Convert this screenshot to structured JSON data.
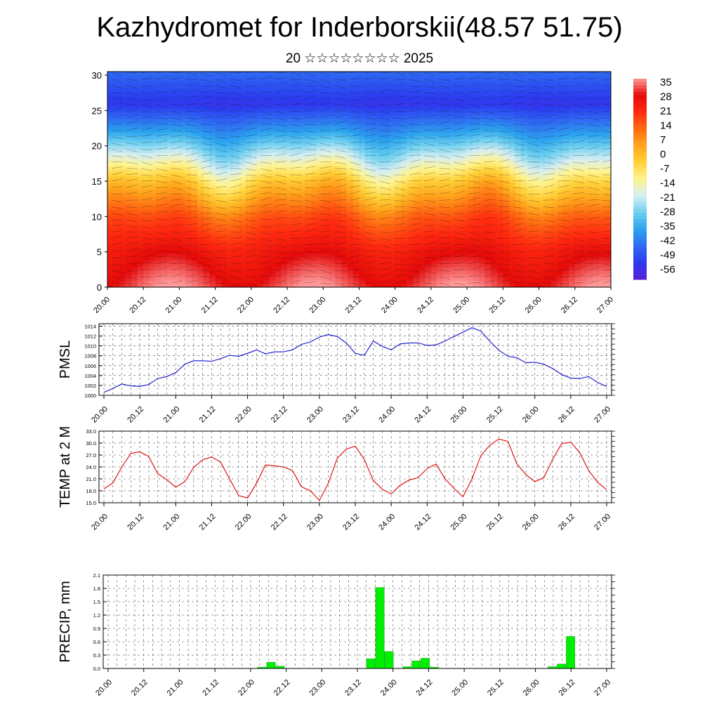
{
  "header": {
    "title": "Kazhydromet for Inderborskii(48.57 51.75)",
    "subtitle": "20 ☆☆☆☆☆☆☆☆ 2025"
  },
  "chart_data": [
    {
      "type": "heatmap",
      "title": "Kazhydromet for Inderborskii(48.57 51.75)",
      "subtitle": "20 ☆☆☆☆☆☆☆☆ 2025",
      "x_ticks": [
        "20.00",
        "20.12",
        "21.00",
        "21.12",
        "22.00",
        "22.12",
        "23.00",
        "23.12",
        "24.00",
        "24.12",
        "25.00",
        "25.12",
        "26.00",
        "26.12",
        "27.00"
      ],
      "y_ticks": [
        0,
        5,
        10,
        15,
        20,
        25,
        30
      ],
      "ylim": [
        0,
        30.5
      ],
      "colorbar_levels": [
        35,
        28,
        21,
        14,
        7,
        0,
        -7,
        -14,
        -21,
        -28,
        -35,
        -42,
        -49,
        -56
      ],
      "colorbar_range": [
        -63,
        42
      ],
      "colorbar_colors": [
        "#5a1fd6",
        "#2b3cf0",
        "#2f6cf2",
        "#2ba3ee",
        "#6fd0f0",
        "#d6eef2",
        "#fff490",
        "#ffd23a",
        "#ffa51c",
        "#ff6a12",
        "#ff2a10",
        "#e40a0a",
        "#ff9a9a"
      ],
      "temperature_profile": {
        "levels": [
          0,
          5,
          10,
          15,
          18,
          22,
          26,
          30.5
        ],
        "values": [
          38,
          30,
          18,
          -2,
          -18,
          -38,
          -56,
          -46
        ]
      },
      "grid": false
    },
    {
      "type": "line",
      "ylabel": "PMSL",
      "x_ticks": [
        "20.00",
        "20.12",
        "21.00",
        "21.12",
        "22.00",
        "22.12",
        "23.00",
        "23.12",
        "24.00",
        "24.12",
        "25.00",
        "25.12",
        "26.00",
        "26.12",
        "27.00"
      ],
      "y_ticks": [
        1000,
        1002,
        1004,
        1006,
        1008,
        1010,
        1012,
        1014
      ],
      "ylim": [
        1000,
        1014.5
      ],
      "grid": true,
      "color": "#1010d0",
      "values": [
        1000.6,
        1001.4,
        1002.3,
        1001.9,
        1001.8,
        1002.2,
        1003.4,
        1003.8,
        1004.6,
        1006.3,
        1007.0,
        1007.0,
        1006.9,
        1007.4,
        1008.1,
        1007.9,
        1008.5,
        1009.2,
        1008.4,
        1008.8,
        1008.8,
        1009.2,
        1010.3,
        1010.8,
        1011.8,
        1012.3,
        1011.9,
        1010.6,
        1008.5,
        1008.1,
        1011.0,
        1009.9,
        1009.2,
        1010.4,
        1010.6,
        1010.6,
        1010.1,
        1010.2,
        1011.0,
        1011.9,
        1012.8,
        1013.7,
        1013.0,
        1010.9,
        1009.1,
        1007.9,
        1007.6,
        1006.6,
        1006.7,
        1006.3,
        1005.4,
        1004.2,
        1003.5,
        1003.4,
        1003.8,
        1002.6,
        1001.8
      ]
    },
    {
      "type": "line",
      "ylabel": "TEMP at 2 M",
      "x_ticks": [
        "20.00",
        "20.12",
        "21.00",
        "21.12",
        "22.00",
        "22.12",
        "23.00",
        "23.12",
        "24.00",
        "24.12",
        "25.00",
        "25.12",
        "26.00",
        "26.12",
        "27.00"
      ],
      "y_ticks": [
        "15.0",
        "18.0",
        "21.0",
        "24.0",
        "27.0",
        "30.0",
        "33.0"
      ],
      "ylim": [
        15,
        33
      ],
      "grid": true,
      "color": "#e00000",
      "values": [
        18.5,
        20.0,
        24.0,
        27.4,
        27.8,
        26.6,
        22.3,
        20.8,
        18.9,
        20.3,
        23.9,
        25.8,
        26.5,
        25.2,
        21.0,
        16.8,
        16.2,
        19.9,
        24.5,
        24.3,
        24.0,
        23.1,
        19.0,
        18.0,
        15.6,
        19.9,
        26.2,
        28.5,
        29.2,
        25.9,
        20.6,
        18.4,
        17.2,
        19.4,
        20.7,
        21.3,
        23.6,
        24.7,
        21.0,
        18.6,
        16.5,
        21.0,
        26.9,
        29.5,
        31.0,
        30.4,
        24.8,
        22.1,
        20.3,
        21.3,
        26.0,
        29.9,
        30.2,
        27.6,
        23.1,
        20.1,
        18.3
      ]
    },
    {
      "type": "bar",
      "ylabel": "PRECIP, mm",
      "x_ticks": [
        "20.00",
        "20.12",
        "21.00",
        "21.12",
        "22.00",
        "22.12",
        "23.00",
        "23.12",
        "24.00",
        "24.12",
        "25.00",
        "25.12",
        "26.00",
        "26.12",
        "27.00"
      ],
      "y_ticks": [
        "0.0",
        "0.3",
        "0.6",
        "0.9",
        "1.2",
        "1.5",
        "1.8",
        "2.1"
      ],
      "ylim": [
        0,
        2.1
      ],
      "grid": true,
      "color": "#00ee00",
      "values": [
        0,
        0,
        0,
        0,
        0,
        0,
        0,
        0,
        0,
        0,
        0,
        0,
        0,
        0,
        0,
        0,
        0,
        0.03,
        0.14,
        0.05,
        0,
        0,
        0,
        0,
        0,
        0,
        0,
        0,
        0,
        0.22,
        1.82,
        0.38,
        0,
        0.04,
        0.17,
        0.23,
        0.03,
        0,
        0,
        0,
        0,
        0,
        0,
        0,
        0,
        0,
        0,
        0,
        0,
        0.04,
        0.1,
        0.72,
        0,
        0,
        0,
        0
      ]
    }
  ]
}
